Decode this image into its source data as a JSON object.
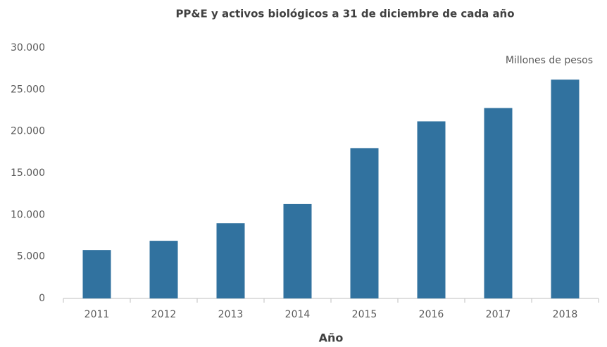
{
  "chart_data": {
    "type": "bar",
    "title": "PP&E y activos biológicos a 31 de diciembre de cada año",
    "annotation": "Millones de pesos",
    "x_label": "Año",
    "categories": [
      "2011",
      "2012",
      "2013",
      "2014",
      "2015",
      "2016",
      "2017",
      "2018"
    ],
    "values": [
      5800,
      6900,
      9000,
      11300,
      18000,
      21200,
      22800,
      26200
    ],
    "color": "#31729f",
    "ylim": [
      0,
      30000
    ],
    "yticks": [
      0,
      {
        "value": 5000,
        "label": "5.000"
      },
      {
        "value": 10000,
        "label": "10.000"
      },
      {
        "value": 15000,
        "label": "15.000"
      },
      {
        "value": 20000,
        "label": "20.000"
      },
      {
        "value": 25000,
        "label": "25.000"
      },
      {
        "value": 30000,
        "label": "30.000"
      }
    ],
    "grid": false
  }
}
